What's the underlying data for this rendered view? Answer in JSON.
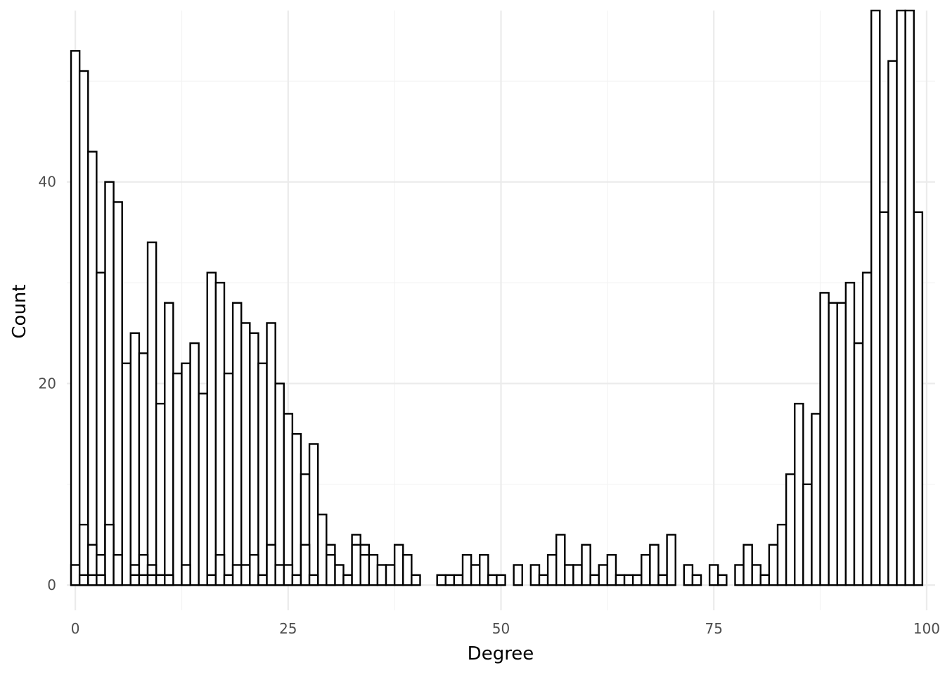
{
  "chart_data": {
    "type": "bar",
    "variant": "histogram (overlaid bars, white fill, black outline)",
    "xlabel": "Degree",
    "ylabel": "Count",
    "xlim": [
      -1,
      101
    ],
    "ylim": [
      -2.5,
      57
    ],
    "x_ticks": [
      0,
      25,
      50,
      75,
      100
    ],
    "y_ticks": [
      0,
      20,
      40
    ],
    "grid": true,
    "series": [
      {
        "x": [
          0,
          1,
          2,
          3,
          4,
          5,
          6,
          7,
          8,
          9,
          10,
          11,
          12,
          13,
          14,
          15,
          16,
          17,
          18,
          19,
          20,
          21,
          22,
          23,
          24,
          25,
          26,
          27,
          28,
          29,
          30,
          31,
          32,
          33,
          34,
          35,
          36,
          37,
          38,
          39,
          40,
          41,
          42,
          43,
          44,
          45,
          46,
          47,
          48,
          49,
          50,
          51,
          52,
          53,
          54,
          55,
          56,
          57,
          58,
          59,
          60,
          61,
          62,
          63,
          64,
          65,
          66,
          67,
          68,
          69,
          70,
          71,
          72,
          73,
          74,
          75,
          76,
          77,
          78,
          79,
          80,
          81,
          82,
          83,
          84,
          85,
          86,
          87,
          88,
          89,
          90,
          91,
          92,
          93,
          94,
          95,
          96,
          97,
          98,
          99
        ],
        "values": [
          53,
          51,
          43,
          31,
          40,
          38,
          22,
          25,
          23,
          34,
          18,
          28,
          21,
          22,
          24,
          19,
          31,
          30,
          21,
          28,
          26,
          25,
          22,
          26,
          20,
          17,
          15,
          11,
          14,
          7,
          4,
          2,
          1,
          5,
          4,
          3,
          2,
          2,
          4,
          3,
          1,
          0,
          0,
          1,
          1,
          1,
          3,
          2,
          3,
          1,
          1,
          0,
          2,
          0,
          2,
          1,
          3,
          5,
          2,
          2,
          4,
          1,
          2,
          3,
          1,
          1,
          1,
          3,
          4,
          1,
          5,
          0,
          2,
          1,
          0,
          2,
          1,
          0,
          2,
          4,
          2,
          1,
          4,
          6,
          11,
          18,
          10,
          17,
          29,
          28,
          28,
          30,
          24,
          31,
          57,
          37,
          52,
          57,
          57,
          37
        ]
      },
      {
        "x": [
          0,
          1,
          2,
          3,
          4,
          5,
          6,
          7,
          8,
          9,
          10,
          11,
          12,
          13,
          14,
          15,
          16,
          17,
          18,
          19,
          20,
          21,
          22,
          23,
          24,
          25,
          26,
          27,
          28,
          29,
          30,
          31,
          32,
          33,
          34,
          35,
          36,
          37,
          38,
          39,
          40,
          41,
          42,
          43,
          44,
          45,
          46,
          47,
          48,
          49,
          50,
          51,
          52,
          53,
          54,
          55,
          56,
          57,
          58,
          59,
          60,
          61,
          62,
          63,
          64,
          65,
          66,
          67,
          68,
          69,
          70,
          71,
          72,
          73,
          74,
          75,
          76,
          77,
          78,
          79,
          80,
          81,
          82,
          83,
          84,
          85,
          86,
          87,
          88,
          89,
          90,
          91,
          92,
          93,
          94,
          95,
          96,
          97,
          98,
          99
        ],
        "values": [
          2,
          6,
          4,
          3,
          6,
          3,
          0,
          2,
          3,
          2,
          1,
          1,
          0,
          2,
          0,
          0,
          1,
          3,
          1,
          2,
          2,
          3,
          1,
          4,
          2,
          2,
          1,
          4,
          1,
          0,
          3,
          0,
          0,
          4,
          3,
          0,
          0,
          0,
          0,
          0,
          0,
          0,
          0,
          0,
          0,
          0,
          0,
          0,
          0,
          0,
          0,
          0,
          0,
          0,
          0,
          0,
          0,
          0,
          0,
          0,
          0,
          0,
          0,
          0,
          0,
          0,
          0,
          0,
          0,
          0,
          0,
          0,
          0,
          0,
          0,
          0,
          0,
          0,
          0,
          0,
          0,
          0,
          0,
          0,
          0,
          0,
          0,
          0,
          0,
          0,
          0,
          0,
          0,
          0,
          0,
          0,
          0,
          0,
          0,
          0
        ]
      },
      {
        "x": [
          0,
          1,
          2,
          3,
          4,
          5,
          6,
          7,
          8,
          9,
          10,
          11,
          12,
          13,
          14,
          15,
          16,
          17,
          18,
          19,
          20,
          21,
          22,
          23,
          24,
          25,
          26,
          27,
          28,
          29,
          30,
          31,
          32,
          33,
          34,
          35,
          36,
          37,
          38,
          39,
          40,
          41,
          42,
          43,
          44,
          45,
          46,
          47,
          48,
          49,
          50,
          51,
          52,
          53,
          54,
          55,
          56,
          57,
          58,
          59,
          60,
          61,
          62,
          63,
          64,
          65,
          66,
          67,
          68,
          69,
          70,
          71,
          72,
          73,
          74,
          75,
          76,
          77,
          78,
          79,
          80,
          81,
          82,
          83,
          84,
          85,
          86,
          87,
          88,
          89,
          90,
          91,
          92,
          93,
          94,
          95,
          96,
          97,
          98,
          99
        ],
        "values": [
          0,
          1,
          1,
          1,
          0,
          0,
          0,
          1,
          1,
          1,
          1,
          1,
          0,
          0,
          0,
          0,
          0,
          0,
          0,
          0,
          0,
          0,
          0,
          0,
          0,
          0,
          0,
          0,
          0,
          0,
          0,
          0,
          0,
          0,
          0,
          0,
          0,
          0,
          0,
          0,
          0,
          0,
          0,
          0,
          0,
          0,
          0,
          0,
          0,
          0,
          0,
          0,
          0,
          0,
          0,
          0,
          0,
          0,
          0,
          0,
          0,
          0,
          0,
          0,
          0,
          0,
          0,
          0,
          0,
          0,
          0,
          0,
          0,
          0,
          0,
          0,
          0,
          0,
          0,
          0,
          0,
          0,
          0,
          0,
          0,
          0,
          0,
          0,
          0,
          0,
          0,
          0,
          0,
          0,
          0,
          0,
          0,
          0,
          0,
          0
        ]
      }
    ]
  }
}
